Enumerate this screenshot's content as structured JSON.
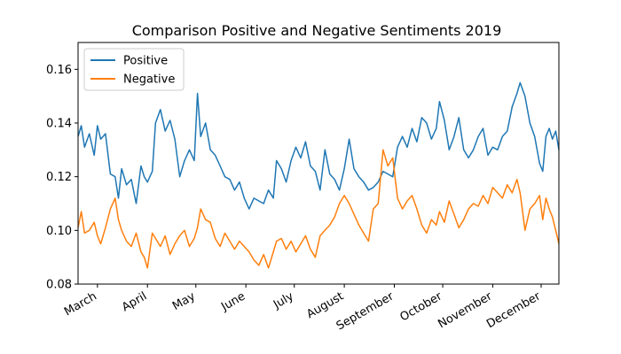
{
  "chart_data": {
    "type": "line",
    "title": "Comparison Positive and Negative Sentiments 2019",
    "xlabel": "",
    "ylabel": "",
    "ylim": [
      0.08,
      0.17
    ],
    "y_ticks": [
      0.08,
      0.1,
      0.12,
      0.14,
      0.16
    ],
    "y_tick_labels": [
      "0.08",
      "0.10",
      "0.12",
      "0.14",
      "0.16"
    ],
    "x_range": [
      "2019-02-17",
      "2019-12-12"
    ],
    "x_ticks": [
      {
        "date": "2019-03-01",
        "label": "March"
      },
      {
        "date": "2019-04-01",
        "label": "April"
      },
      {
        "date": "2019-05-01",
        "label": "May"
      },
      {
        "date": "2019-06-01",
        "label": "June"
      },
      {
        "date": "2019-07-01",
        "label": "July"
      },
      {
        "date": "2019-08-01",
        "label": "August"
      },
      {
        "date": "2019-09-01",
        "label": "September"
      },
      {
        "date": "2019-10-01",
        "label": "October"
      },
      {
        "date": "2019-11-01",
        "label": "November"
      },
      {
        "date": "2019-12-01",
        "label": "December"
      }
    ],
    "legend_position": "top-left",
    "grid": false,
    "series": [
      {
        "name": "Positive",
        "color": "#1f77b4",
        "points": [
          [
            "2019-02-17",
            0.135
          ],
          [
            "2019-02-19",
            0.139
          ],
          [
            "2019-02-21",
            0.131
          ],
          [
            "2019-02-24",
            0.136
          ],
          [
            "2019-02-27",
            0.128
          ],
          [
            "2019-03-01",
            0.139
          ],
          [
            "2019-03-03",
            0.134
          ],
          [
            "2019-03-06",
            0.136
          ],
          [
            "2019-03-09",
            0.121
          ],
          [
            "2019-03-12",
            0.12
          ],
          [
            "2019-03-14",
            0.112
          ],
          [
            "2019-03-16",
            0.123
          ],
          [
            "2019-03-19",
            0.117
          ],
          [
            "2019-03-22",
            0.119
          ],
          [
            "2019-03-25",
            0.11
          ],
          [
            "2019-03-28",
            0.124
          ],
          [
            "2019-03-30",
            0.12
          ],
          [
            "2019-04-01",
            0.118
          ],
          [
            "2019-04-04",
            0.122
          ],
          [
            "2019-04-06",
            0.14
          ],
          [
            "2019-04-09",
            0.145
          ],
          [
            "2019-04-12",
            0.137
          ],
          [
            "2019-04-15",
            0.141
          ],
          [
            "2019-04-18",
            0.134
          ],
          [
            "2019-04-21",
            0.12
          ],
          [
            "2019-04-24",
            0.126
          ],
          [
            "2019-04-27",
            0.13
          ],
          [
            "2019-04-30",
            0.126
          ],
          [
            "2019-05-02",
            0.151
          ],
          [
            "2019-05-04",
            0.135
          ],
          [
            "2019-05-07",
            0.14
          ],
          [
            "2019-05-10",
            0.13
          ],
          [
            "2019-05-13",
            0.128
          ],
          [
            "2019-05-16",
            0.124
          ],
          [
            "2019-05-19",
            0.12
          ],
          [
            "2019-05-22",
            0.119
          ],
          [
            "2019-05-25",
            0.115
          ],
          [
            "2019-05-28",
            0.118
          ],
          [
            "2019-05-31",
            0.112
          ],
          [
            "2019-06-03",
            0.108
          ],
          [
            "2019-06-06",
            0.112
          ],
          [
            "2019-06-09",
            0.111
          ],
          [
            "2019-06-12",
            0.11
          ],
          [
            "2019-06-15",
            0.115
          ],
          [
            "2019-06-18",
            0.112
          ],
          [
            "2019-06-20",
            0.126
          ],
          [
            "2019-06-23",
            0.123
          ],
          [
            "2019-06-26",
            0.118
          ],
          [
            "2019-06-29",
            0.126
          ],
          [
            "2019-07-02",
            0.131
          ],
          [
            "2019-07-05",
            0.127
          ],
          [
            "2019-07-08",
            0.133
          ],
          [
            "2019-07-11",
            0.124
          ],
          [
            "2019-07-14",
            0.122
          ],
          [
            "2019-07-17",
            0.115
          ],
          [
            "2019-07-20",
            0.13
          ],
          [
            "2019-07-23",
            0.121
          ],
          [
            "2019-07-26",
            0.119
          ],
          [
            "2019-07-29",
            0.115
          ],
          [
            "2019-08-01",
            0.123
          ],
          [
            "2019-08-04",
            0.134
          ],
          [
            "2019-08-07",
            0.123
          ],
          [
            "2019-08-10",
            0.12
          ],
          [
            "2019-08-13",
            0.118
          ],
          [
            "2019-08-16",
            0.115
          ],
          [
            "2019-08-19",
            0.116
          ],
          [
            "2019-08-22",
            0.118
          ],
          [
            "2019-08-25",
            0.122
          ],
          [
            "2019-08-28",
            0.121
          ],
          [
            "2019-08-31",
            0.12
          ],
          [
            "2019-09-03",
            0.131
          ],
          [
            "2019-09-06",
            0.135
          ],
          [
            "2019-09-09",
            0.131
          ],
          [
            "2019-09-12",
            0.138
          ],
          [
            "2019-09-15",
            0.133
          ],
          [
            "2019-09-18",
            0.142
          ],
          [
            "2019-09-21",
            0.14
          ],
          [
            "2019-09-24",
            0.134
          ],
          [
            "2019-09-27",
            0.138
          ],
          [
            "2019-09-29",
            0.148
          ],
          [
            "2019-10-02",
            0.141
          ],
          [
            "2019-10-05",
            0.13
          ],
          [
            "2019-10-08",
            0.135
          ],
          [
            "2019-10-11",
            0.142
          ],
          [
            "2019-10-14",
            0.13
          ],
          [
            "2019-10-17",
            0.127
          ],
          [
            "2019-10-20",
            0.13
          ],
          [
            "2019-10-23",
            0.135
          ],
          [
            "2019-10-26",
            0.138
          ],
          [
            "2019-10-29",
            0.128
          ],
          [
            "2019-11-01",
            0.131
          ],
          [
            "2019-11-04",
            0.13
          ],
          [
            "2019-11-07",
            0.135
          ],
          [
            "2019-11-10",
            0.137
          ],
          [
            "2019-11-13",
            0.146
          ],
          [
            "2019-11-16",
            0.151
          ],
          [
            "2019-11-18",
            0.155
          ],
          [
            "2019-11-21",
            0.15
          ],
          [
            "2019-11-24",
            0.14
          ],
          [
            "2019-11-27",
            0.135
          ],
          [
            "2019-11-30",
            0.125
          ],
          [
            "2019-12-02",
            0.122
          ],
          [
            "2019-12-04",
            0.135
          ],
          [
            "2019-12-06",
            0.138
          ],
          [
            "2019-12-08",
            0.134
          ],
          [
            "2019-12-10",
            0.137
          ],
          [
            "2019-12-12",
            0.13
          ]
        ]
      },
      {
        "name": "Negative",
        "color": "#ff7f0e",
        "points": [
          [
            "2019-02-17",
            0.101
          ],
          [
            "2019-02-19",
            0.107
          ],
          [
            "2019-02-21",
            0.099
          ],
          [
            "2019-02-24",
            0.1
          ],
          [
            "2019-02-27",
            0.103
          ],
          [
            "2019-03-01",
            0.098
          ],
          [
            "2019-03-03",
            0.095
          ],
          [
            "2019-03-06",
            0.101
          ],
          [
            "2019-03-09",
            0.108
          ],
          [
            "2019-03-12",
            0.112
          ],
          [
            "2019-03-14",
            0.104
          ],
          [
            "2019-03-16",
            0.1
          ],
          [
            "2019-03-19",
            0.096
          ],
          [
            "2019-03-22",
            0.094
          ],
          [
            "2019-03-25",
            0.099
          ],
          [
            "2019-03-28",
            0.092
          ],
          [
            "2019-03-30",
            0.09
          ],
          [
            "2019-04-01",
            0.086
          ],
          [
            "2019-04-04",
            0.099
          ],
          [
            "2019-04-06",
            0.097
          ],
          [
            "2019-04-09",
            0.094
          ],
          [
            "2019-04-12",
            0.098
          ],
          [
            "2019-04-15",
            0.091
          ],
          [
            "2019-04-18",
            0.095
          ],
          [
            "2019-04-21",
            0.098
          ],
          [
            "2019-04-24",
            0.1
          ],
          [
            "2019-04-27",
            0.094
          ],
          [
            "2019-04-30",
            0.097
          ],
          [
            "2019-05-02",
            0.101
          ],
          [
            "2019-05-04",
            0.108
          ],
          [
            "2019-05-07",
            0.104
          ],
          [
            "2019-05-10",
            0.103
          ],
          [
            "2019-05-13",
            0.097
          ],
          [
            "2019-05-16",
            0.094
          ],
          [
            "2019-05-19",
            0.099
          ],
          [
            "2019-05-22",
            0.096
          ],
          [
            "2019-05-25",
            0.093
          ],
          [
            "2019-05-28",
            0.096
          ],
          [
            "2019-05-31",
            0.094
          ],
          [
            "2019-06-03",
            0.092
          ],
          [
            "2019-06-06",
            0.089
          ],
          [
            "2019-06-09",
            0.087
          ],
          [
            "2019-06-12",
            0.091
          ],
          [
            "2019-06-15",
            0.086
          ],
          [
            "2019-06-18",
            0.092
          ],
          [
            "2019-06-20",
            0.096
          ],
          [
            "2019-06-23",
            0.097
          ],
          [
            "2019-06-26",
            0.093
          ],
          [
            "2019-06-29",
            0.096
          ],
          [
            "2019-07-02",
            0.092
          ],
          [
            "2019-07-05",
            0.095
          ],
          [
            "2019-07-08",
            0.098
          ],
          [
            "2019-07-11",
            0.093
          ],
          [
            "2019-07-14",
            0.09
          ],
          [
            "2019-07-17",
            0.098
          ],
          [
            "2019-07-20",
            0.1
          ],
          [
            "2019-07-23",
            0.102
          ],
          [
            "2019-07-26",
            0.105
          ],
          [
            "2019-07-29",
            0.11
          ],
          [
            "2019-08-01",
            0.113
          ],
          [
            "2019-08-04",
            0.11
          ],
          [
            "2019-08-07",
            0.106
          ],
          [
            "2019-08-10",
            0.102
          ],
          [
            "2019-08-13",
            0.099
          ],
          [
            "2019-08-16",
            0.096
          ],
          [
            "2019-08-19",
            0.108
          ],
          [
            "2019-08-22",
            0.11
          ],
          [
            "2019-08-25",
            0.13
          ],
          [
            "2019-08-28",
            0.124
          ],
          [
            "2019-08-31",
            0.127
          ],
          [
            "2019-09-03",
            0.112
          ],
          [
            "2019-09-06",
            0.108
          ],
          [
            "2019-09-09",
            0.111
          ],
          [
            "2019-09-12",
            0.113
          ],
          [
            "2019-09-15",
            0.108
          ],
          [
            "2019-09-18",
            0.102
          ],
          [
            "2019-09-21",
            0.099
          ],
          [
            "2019-09-24",
            0.104
          ],
          [
            "2019-09-27",
            0.102
          ],
          [
            "2019-09-29",
            0.107
          ],
          [
            "2019-10-02",
            0.103
          ],
          [
            "2019-10-05",
            0.111
          ],
          [
            "2019-10-08",
            0.106
          ],
          [
            "2019-10-11",
            0.101
          ],
          [
            "2019-10-14",
            0.104
          ],
          [
            "2019-10-17",
            0.108
          ],
          [
            "2019-10-20",
            0.11
          ],
          [
            "2019-10-23",
            0.109
          ],
          [
            "2019-10-26",
            0.113
          ],
          [
            "2019-10-29",
            0.11
          ],
          [
            "2019-11-01",
            0.116
          ],
          [
            "2019-11-04",
            0.114
          ],
          [
            "2019-11-07",
            0.112
          ],
          [
            "2019-11-10",
            0.117
          ],
          [
            "2019-11-13",
            0.114
          ],
          [
            "2019-11-16",
            0.119
          ],
          [
            "2019-11-18",
            0.114
          ],
          [
            "2019-11-21",
            0.1
          ],
          [
            "2019-11-24",
            0.108
          ],
          [
            "2019-11-27",
            0.11
          ],
          [
            "2019-11-30",
            0.113
          ],
          [
            "2019-12-02",
            0.104
          ],
          [
            "2019-12-04",
            0.112
          ],
          [
            "2019-12-06",
            0.108
          ],
          [
            "2019-12-08",
            0.105
          ],
          [
            "2019-12-10",
            0.1
          ],
          [
            "2019-12-12",
            0.095
          ]
        ]
      }
    ]
  }
}
